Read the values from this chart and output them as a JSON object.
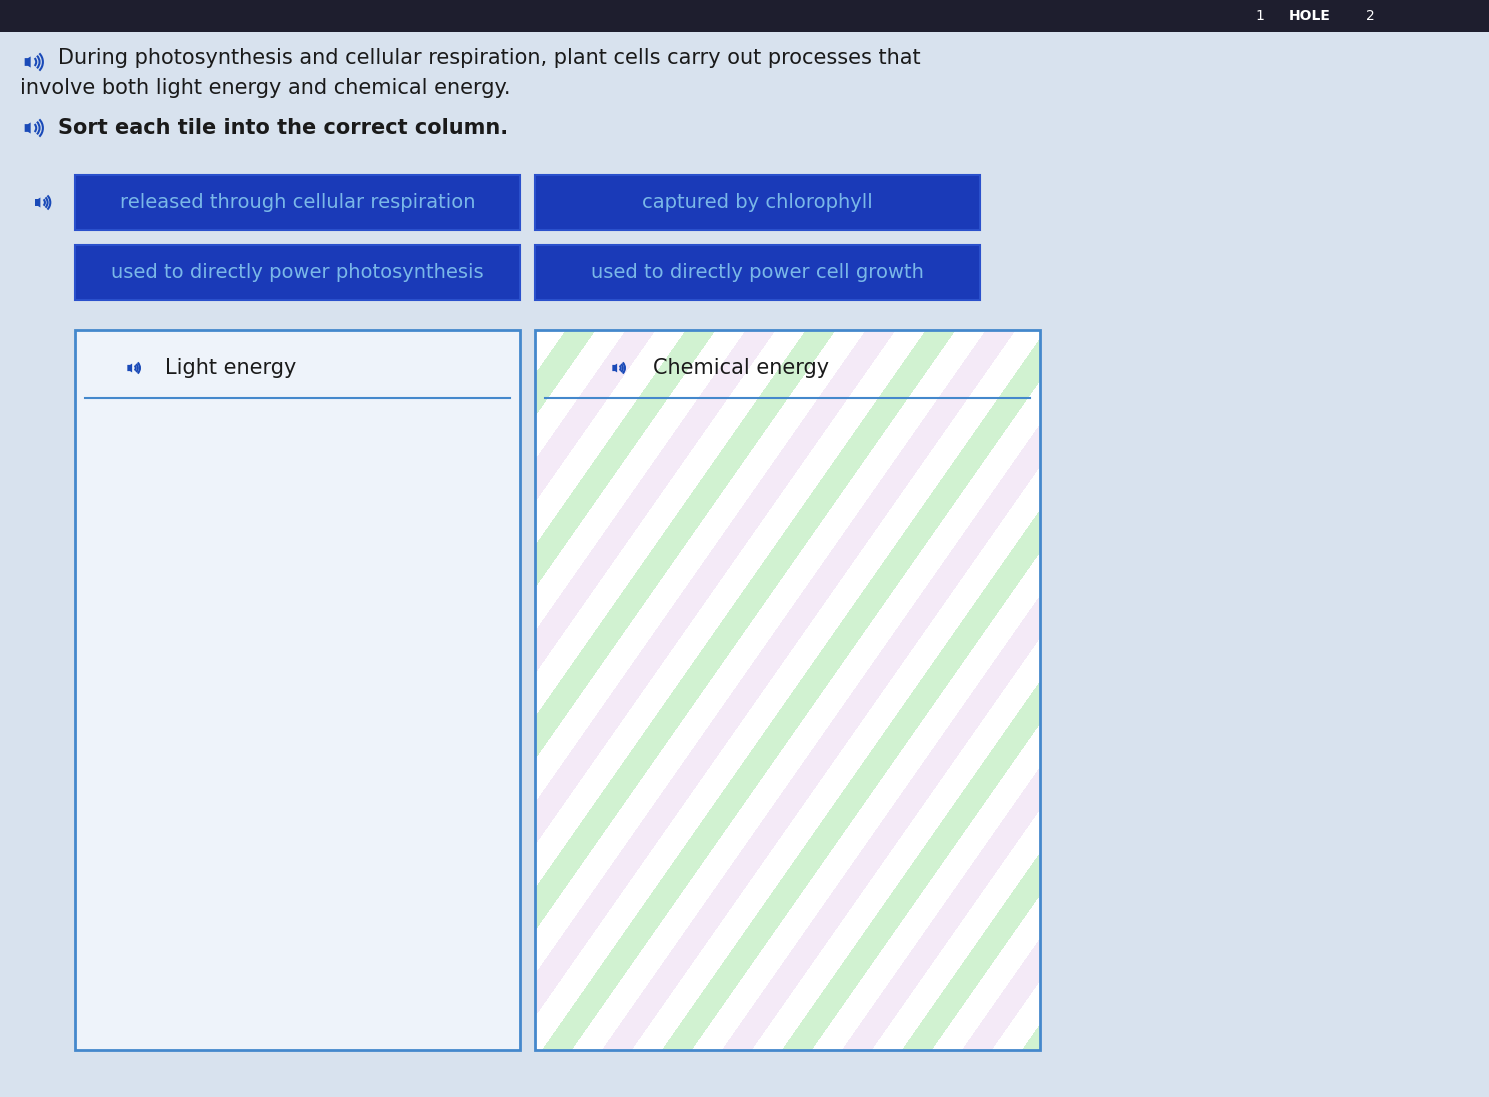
{
  "bg_color": "#cdd5e0",
  "text1_line1": "During photosynthesis and cellular respiration, plant cells carry out processes that",
  "text1_line2": "involve both light energy and chemical energy.",
  "text2": "Sort each tile into the correct column.",
  "tile1": "released through cellular respiration",
  "tile2": "captured by chlorophyll",
  "tile3": "used to directly power photosynthesis",
  "tile4": "used to directly power cell growth",
  "col1_label": "Light energy",
  "col2_label": "Chemical energy",
  "tile_bg": "#1a3ab8",
  "tile_text_color": "#7ab8e8",
  "col_border_color": "#4488cc",
  "col1_bg": "#edf2f8",
  "speaker_color": "#1a4ab8",
  "top_bar_color": "#1a1a2a",
  "font_size_body": 15,
  "font_size_tile": 14,
  "font_size_col": 15
}
